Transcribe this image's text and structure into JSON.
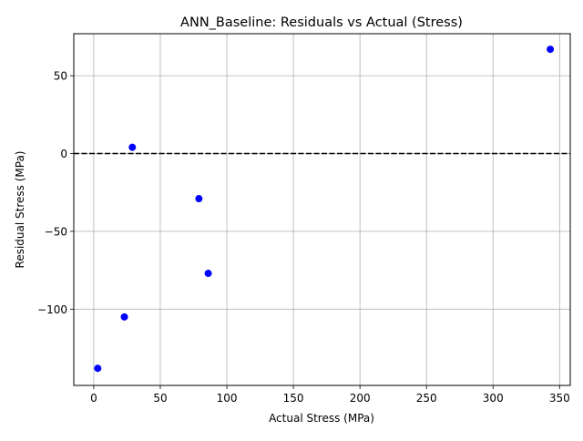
{
  "chart_data": {
    "type": "scatter",
    "title": "ANN_Baseline: Residuals vs Actual (Stress)",
    "xlabel": "Actual Stress (MPa)",
    "ylabel": "Residual Stress (MPa)",
    "xlim": [
      -15,
      358
    ],
    "ylim": [
      -149,
      77
    ],
    "xticks": [
      0,
      50,
      100,
      150,
      200,
      250,
      300,
      350
    ],
    "xtick_labels": [
      "0",
      "50",
      "100",
      "150",
      "200",
      "250",
      "300",
      "350"
    ],
    "yticks": [
      50,
      0,
      -50,
      -100
    ],
    "ytick_labels": [
      "50",
      "0",
      "−50",
      "−100"
    ],
    "grid": true,
    "reference_line": {
      "y": 0,
      "style": "dashed",
      "color": "#000000"
    },
    "marker_color": "#0000ff",
    "points": [
      {
        "x": 3,
        "y": -138
      },
      {
        "x": 23,
        "y": -105
      },
      {
        "x": 29,
        "y": 4
      },
      {
        "x": 79,
        "y": -29
      },
      {
        "x": 86,
        "y": -77
      },
      {
        "x": 343,
        "y": 67
      }
    ]
  }
}
